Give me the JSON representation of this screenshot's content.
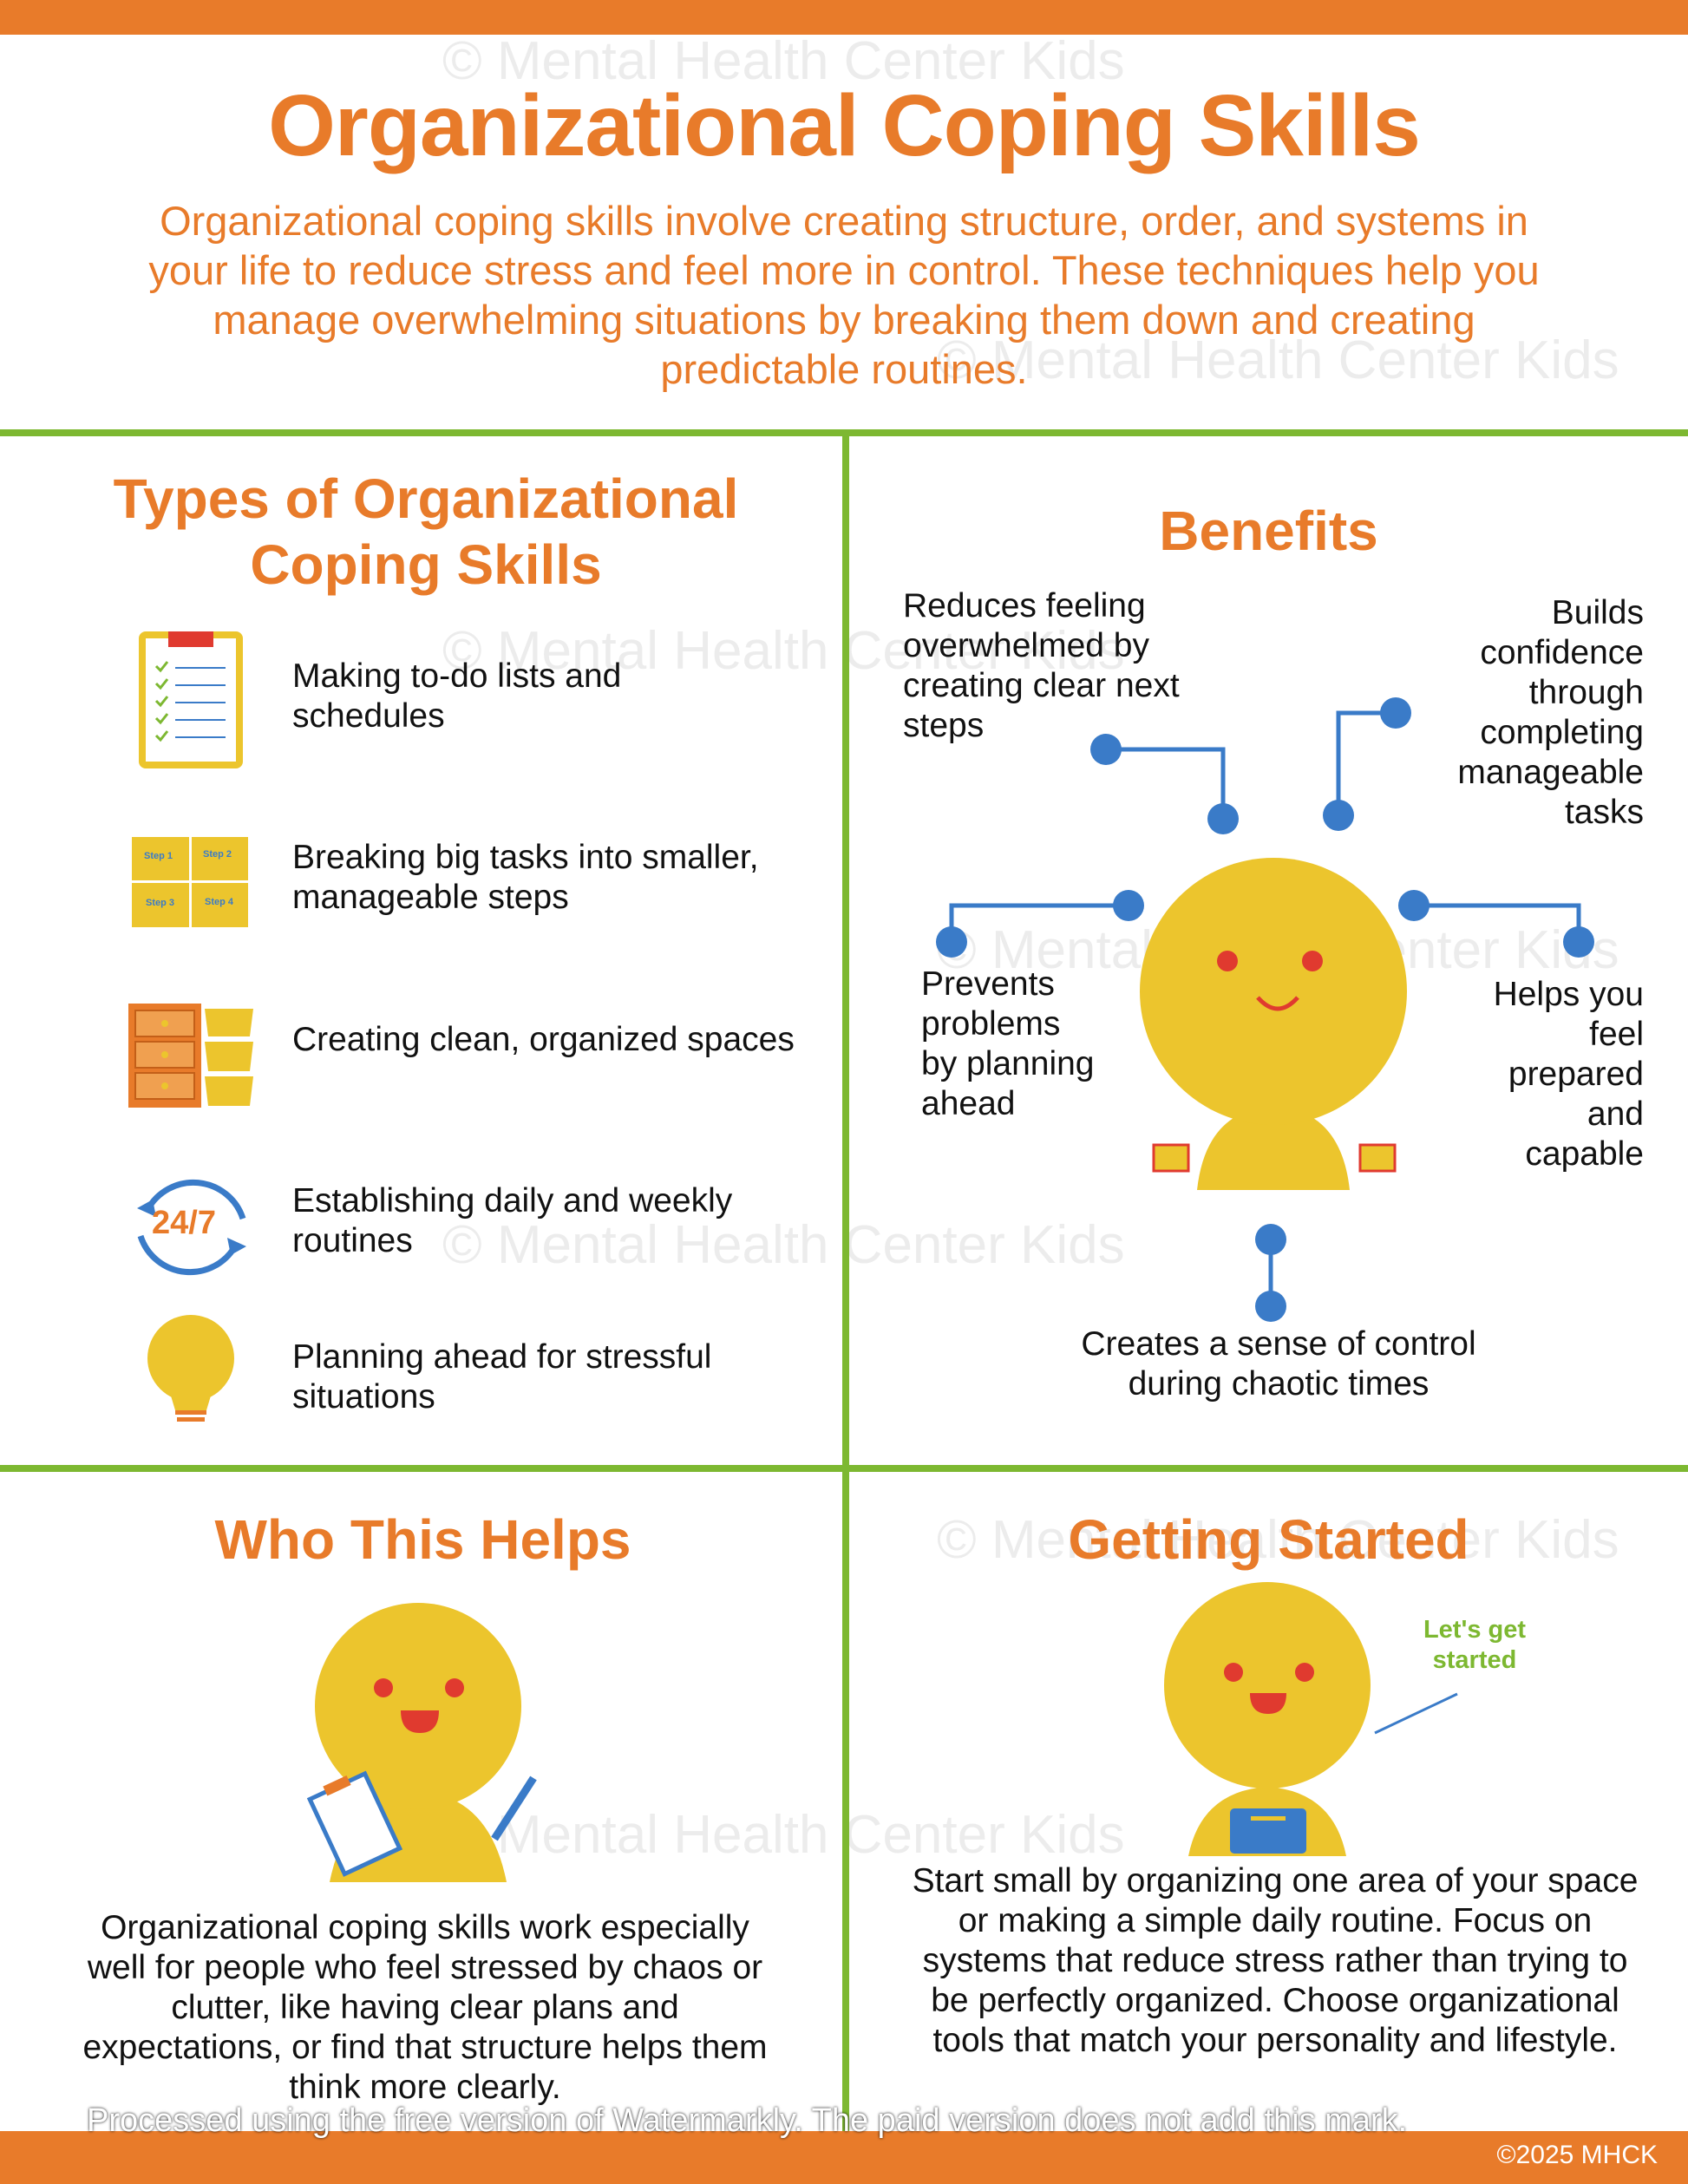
{
  "title": "Organizational Coping Skills",
  "intro": "Organizational coping skills involve creating structure, order, and systems in your life to reduce stress and feel more in control. These techniques help you manage overwhelming situations by breaking them down and creating predictable routines.",
  "types": {
    "heading": "Types of Organizational Coping Skills",
    "items": [
      {
        "icon": "clipboard-checklist-icon",
        "label": "Making to-do lists and schedules"
      },
      {
        "icon": "step-puzzle-icon",
        "label": "Breaking big tasks into smaller, manageable steps",
        "steps": [
          "Step 1",
          "Step 2",
          "Step 3",
          "Step 4"
        ]
      },
      {
        "icon": "drawers-bins-icon",
        "label": "Creating clean, organized spaces"
      },
      {
        "icon": "24-7-cycle-icon",
        "label": "Establishing daily and weekly routines",
        "badge": "24/7"
      },
      {
        "icon": "lightbulb-icon",
        "label": "Planning ahead for stressful situations"
      }
    ]
  },
  "benefits": {
    "heading": "Benefits",
    "items": [
      "Reduces feeling overwhelmed by creating clear next steps",
      "Builds confidence through completing manageable tasks",
      "Prevents problems by planning ahead",
      "Helps you feel prepared and capable",
      "Creates a sense of control during chaotic times"
    ]
  },
  "who": {
    "heading": "Who This Helps",
    "text": "Organizational coping skills work especially well for people who feel stressed by chaos or clutter, like having clear plans and expectations, or find that structure helps them think more clearly."
  },
  "started": {
    "heading": "Getting Started",
    "bubble": "Let's get started",
    "text": "Start small by organizing one area of your space or making a simple daily routine. Focus on systems that reduce stress rather than trying to be perfectly organized. Choose organizational tools that match your personality and lifestyle."
  },
  "watermark": "© Mental Health Center Kids",
  "processed_notice": "Processed using the free version of Watermarkly. The paid version does not add this mark.",
  "copyright": "©2025 MHCK",
  "colors": {
    "orange": "#e87b2a",
    "green": "#7db831",
    "yellow": "#ecc52d",
    "blue": "#3a7bc8",
    "red": "#e03a2f"
  }
}
